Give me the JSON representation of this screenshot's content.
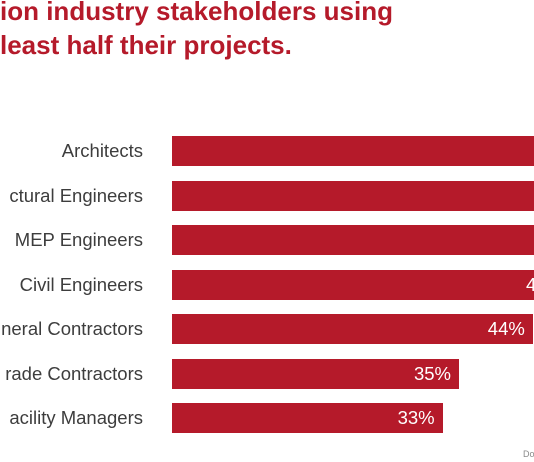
{
  "chart_data": {
    "type": "bar",
    "orientation": "horizontal",
    "title_lines": [
      "ion industry stakeholders using",
      " least half their projects."
    ],
    "categories": [
      "Architects",
      "ctural Engineers",
      "MEP Engineers",
      "Civil Engineers",
      "neral Contractors",
      "rade Contractors",
      "acility Managers"
    ],
    "values": [
      null,
      null,
      null,
      null,
      44,
      35,
      33
    ],
    "value_labels": [
      "",
      "",
      "",
      "4",
      "44%",
      "35%",
      "33%"
    ],
    "unit": "%",
    "bar_color": "#b51a2a",
    "grid": false,
    "legend": "none"
  },
  "source_text": "Do"
}
